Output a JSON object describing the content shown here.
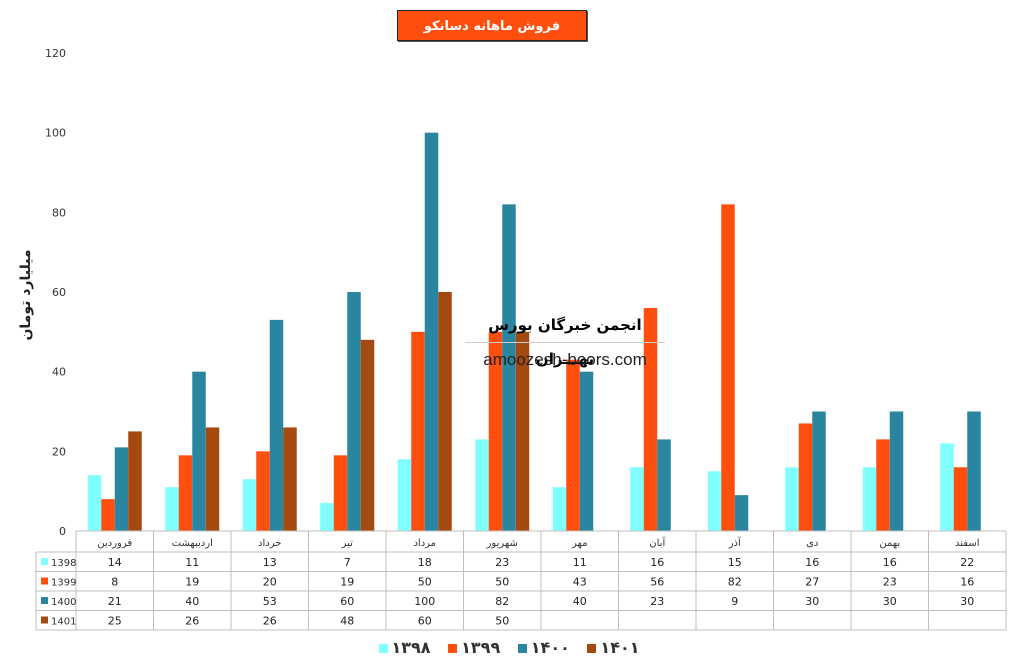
{
  "chart_data": {
    "type": "bar",
    "title": "فروش ماهانه دسانکو",
    "ylabel": "میلیارد تومان",
    "ylim": [
      0,
      120
    ],
    "yticks": [
      0,
      20,
      40,
      60,
      80,
      100,
      120
    ],
    "grid": false,
    "legend_position": "bottom",
    "categories": [
      "فروردین",
      "اردیبهشت",
      "خرداد",
      "تیر",
      "مرداد",
      "شهریور",
      "مهر",
      "آبان",
      "آذر",
      "دی",
      "بهمن",
      "اسفند"
    ],
    "series": [
      {
        "name": "1398",
        "legend_label": "۱۳۹۸",
        "color": "#7FFFFF",
        "values": [
          14,
          11,
          13,
          7,
          18,
          23,
          11,
          16,
          15,
          16,
          16,
          22
        ]
      },
      {
        "name": "1399",
        "legend_label": "۱۳۹۹",
        "color": "#FF4F0E",
        "values": [
          8,
          19,
          20,
          19,
          50,
          50,
          43,
          56,
          82,
          27,
          23,
          16
        ]
      },
      {
        "name": "1400",
        "legend_label": "۱۴۰۰",
        "color": "#2A86A0",
        "values": [
          21,
          40,
          53,
          60,
          100,
          82,
          40,
          23,
          9,
          30,
          30,
          30
        ]
      },
      {
        "name": "1401",
        "legend_label": "۱۴۰۱",
        "color": "#A4490F",
        "values": [
          25,
          26,
          26,
          48,
          60,
          50,
          null,
          null,
          null,
          null,
          null,
          null
        ]
      }
    ]
  },
  "watermark": {
    "persian": "انجمن خبرگان بورس تهـــران",
    "url": "amoozesh-boors.com"
  }
}
